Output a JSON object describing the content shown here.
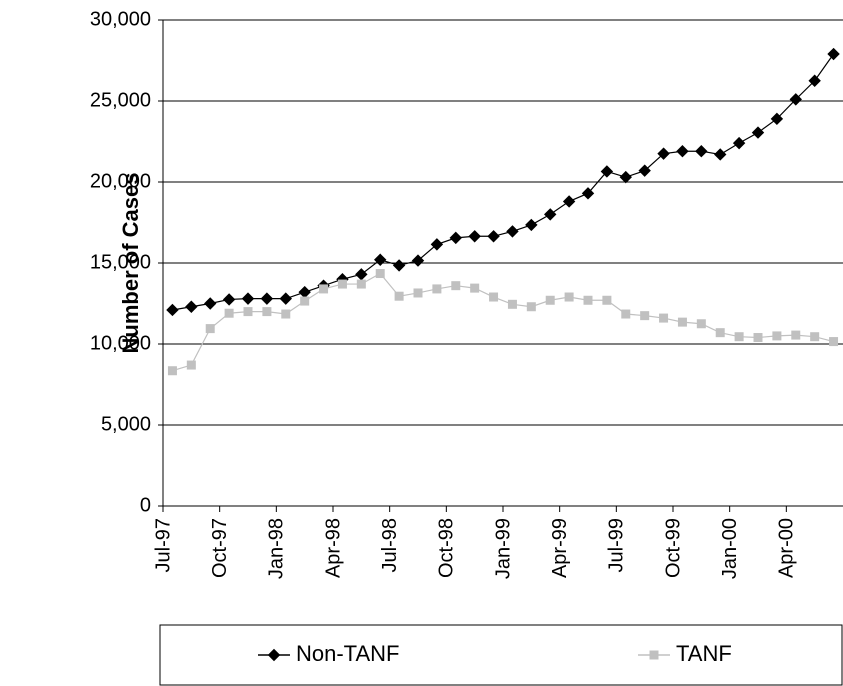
{
  "chart_data": {
    "type": "line",
    "y_label": "Number of Cases",
    "categories": [
      "Jul-97",
      null,
      null,
      "Oct-97",
      null,
      null,
      "Jan-98",
      null,
      null,
      "Apr-98",
      null,
      null,
      "Jul-98",
      null,
      null,
      "Oct-98",
      null,
      null,
      "Jan-99",
      null,
      null,
      "Apr-99",
      null,
      null,
      "Jul-99",
      null,
      null,
      "Oct-99",
      null,
      null,
      "Jan-00",
      null,
      null,
      "Apr-00",
      null,
      null
    ],
    "series": [
      {
        "name": "Non-TANF",
        "color": "#000000",
        "marker": "diamond",
        "values": [
          12100,
          12300,
          12500,
          12750,
          12800,
          12800,
          12800,
          13200,
          13600,
          14000,
          14300,
          15200,
          14850,
          15150,
          16150,
          16550,
          16650,
          16650,
          16950,
          17350,
          18000,
          18800,
          19300,
          20650,
          20300,
          20700,
          21750,
          21900,
          21900,
          21700,
          22400,
          23050,
          23900,
          25100,
          26250,
          27900
        ]
      },
      {
        "name": "TANF",
        "color": "#c0c0c0",
        "marker": "square",
        "values": [
          8350,
          8700,
          10950,
          11900,
          12000,
          12000,
          11850,
          12650,
          13400,
          13700,
          13700,
          14350,
          12950,
          13150,
          13400,
          13600,
          13450,
          12900,
          12450,
          12300,
          12700,
          12900,
          12700,
          12700,
          11850,
          11750,
          11600,
          11350,
          11250,
          10700,
          10450,
          10400,
          10500,
          10550,
          10450,
          10150
        ]
      }
    ],
    "ylim": [
      0,
      30000
    ],
    "yticks": [
      0,
      {
        "value": 5000,
        "label": "5,000"
      },
      {
        "value": 10000,
        "label": "10,000"
      },
      {
        "value": 15000,
        "label": "15,000"
      },
      {
        "value": 20000,
        "label": "20,000"
      },
      {
        "value": 25000,
        "label": "25,000"
      },
      {
        "value": 30000,
        "label": "30,000"
      }
    ],
    "grid": true,
    "legend": "bottom"
  }
}
